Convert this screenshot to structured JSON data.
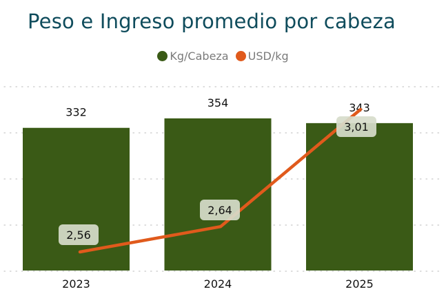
{
  "chart_data": {
    "type": "bar",
    "title": "Peso e Ingreso promedio por cabeza",
    "categories": [
      "2023",
      "2024",
      "2025"
    ],
    "series": [
      {
        "name": "Kg/Cabeza",
        "type": "bar",
        "values": [
          332,
          354,
          343
        ],
        "color": "#3a5a16"
      },
      {
        "name": "USD/kg",
        "type": "line",
        "values": [
          2.56,
          2.64,
          3.01
        ],
        "labels": [
          "2,56",
          "2,64",
          "3,01"
        ],
        "color": "#e05a1c"
      }
    ],
    "legend_position": "top-center",
    "grid": true,
    "xlabel": "",
    "ylabel": ""
  }
}
